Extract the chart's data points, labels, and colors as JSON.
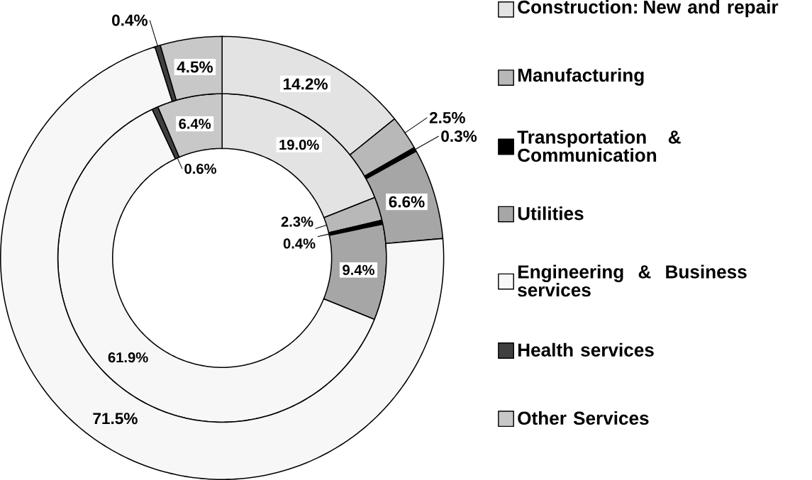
{
  "chart_data": {
    "type": "donut",
    "categories": [
      "Construction: New and repair",
      "Manufacturing",
      "Transportation & Communication",
      "Utilities",
      "Engineering & Business services",
      "Health services",
      "Other Services"
    ],
    "colors": [
      "#e3e3e3",
      "#b8b8b8",
      "#000000",
      "#a6a6a6",
      "#f7f7f7",
      "#404040",
      "#c8c8c8"
    ],
    "series": [
      {
        "values": [
          19.0,
          2.3,
          0.4,
          9.4,
          61.9,
          0.6,
          6.4
        ],
        "value_labels": [
          "19.0%",
          "2.3%",
          "0.4%",
          "9.4%",
          "61.9%",
          "0.6%",
          "6.4%"
        ]
      },
      {
        "values": [
          14.2,
          2.5,
          0.3,
          6.6,
          71.5,
          0.4,
          4.5
        ],
        "value_labels": [
          "14.2%",
          "2.5%",
          "0.3%",
          "6.6%",
          "71.5%",
          "0.4%",
          "4.5%"
        ]
      }
    ],
    "legend": "right"
  }
}
